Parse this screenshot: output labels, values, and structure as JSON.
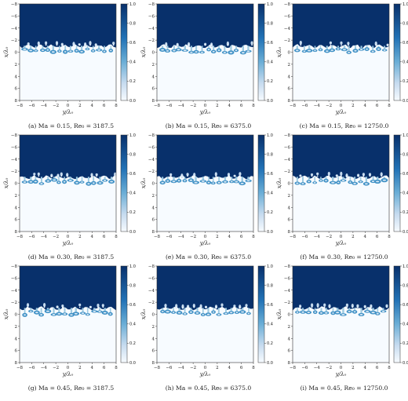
{
  "figure": {
    "x_label": "y/λ₀",
    "y_label": "x/λ₀",
    "x_ticks": [
      "−8",
      "−6",
      "−4",
      "−2",
      "0",
      "2",
      "4",
      "6",
      "8"
    ],
    "y_ticks": [
      "−8",
      "−6",
      "−4",
      "−2",
      "0",
      "2",
      "4",
      "6",
      "8"
    ],
    "colorbar_ticks": [
      "1.0",
      "0.8",
      "0.6",
      "0.4",
      "0.2",
      "0.0"
    ],
    "colormap": {
      "high": "#08306b",
      "low": "#f7fbff",
      "mid": "#6baed6"
    },
    "panels": [
      {
        "caption": "(a) Ma = 0.15, Re₀ = 3187.5",
        "ma": 0.15,
        "re0": 3187.5
      },
      {
        "caption": "(b) Ma = 0.15, Re₀ = 6375.0",
        "ma": 0.15,
        "re0": 6375.0
      },
      {
        "caption": "(c) Ma = 0.15, Re₀ = 12750.0",
        "ma": 0.15,
        "re0": 12750.0
      },
      {
        "caption": "(d) Ma = 0.30, Re₀ = 3187.5",
        "ma": 0.3,
        "re0": 3187.5
      },
      {
        "caption": "(e) Ma = 0.30, Re₀ = 6375.0",
        "ma": 0.3,
        "re0": 6375.0
      },
      {
        "caption": "(f) Ma = 0.30, Re₀ = 12750.0",
        "ma": 0.3,
        "re0": 12750.0
      },
      {
        "caption": "(g) Ma = 0.45, Re₀ = 3187.5",
        "ma": 0.45,
        "re0": 3187.5
      },
      {
        "caption": "(h) Ma = 0.45, Re₀ = 6375.0",
        "ma": 0.45,
        "re0": 6375.0
      },
      {
        "caption": "(i) Ma = 0.45, Re₀ = 12750.0",
        "ma": 0.45,
        "re0": 12750.0
      }
    ]
  }
}
